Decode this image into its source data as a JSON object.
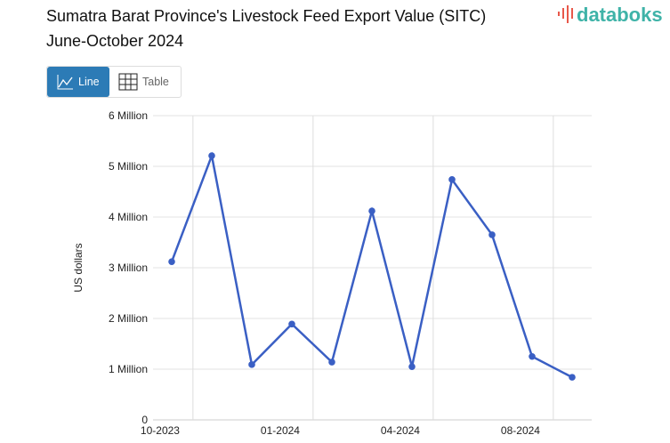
{
  "header": {
    "title_line1": "Sumatra Barat Province's Livestock Feed Export Value (SITC)",
    "title_line2": "June-October 2024",
    "logo": "databoks"
  },
  "toggle": {
    "line_label": "Line",
    "table_label": "Table",
    "active": "Line"
  },
  "colors": {
    "line": "#3a5fc4",
    "active_button": "#2c7bb6",
    "logo_text": "#3fb3a8",
    "logo_icon": "#e8584a"
  },
  "chart_data": {
    "type": "line",
    "title": "Sumatra Barat Province's Livestock Feed Export Value (SITC)",
    "subtitle": "June-October 2024",
    "ylabel": "US dollars",
    "ylim": [
      0,
      6000000
    ],
    "y_ticks": [
      "0",
      "1 Million",
      "2 Million",
      "3 Million",
      "4 Million",
      "5 Million",
      "6 Million"
    ],
    "x_tick_labels": [
      "10-2023",
      "01-2024",
      "04-2024",
      "08-2024"
    ],
    "grid": true,
    "values": [
      3120000,
      5210000,
      1090000,
      1890000,
      1140000,
      4120000,
      1050000,
      4740000,
      3650000,
      1250000,
      840000
    ]
  }
}
